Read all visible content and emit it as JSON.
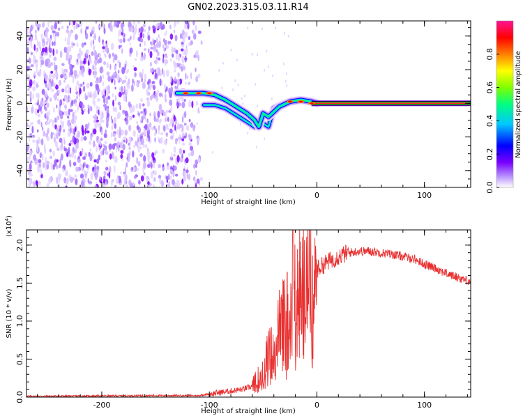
{
  "title": "GN02.2023.315.03.11.R14",
  "chart_data": [
    {
      "type": "heatmap",
      "xlabel": "Height of straight line (km)",
      "ylabel": "Frequency (Hz)",
      "xlim": [
        -270,
        143
      ],
      "ylim": [
        -50,
        49
      ],
      "x_ticks": [
        -200,
        -100,
        0,
        100
      ],
      "x_tick_labels": [
        "-200",
        "-100",
        "0",
        "100"
      ],
      "y_ticks": [
        -40,
        -20,
        0,
        20,
        40
      ],
      "y_tick_labels": [
        "-40",
        "-20",
        "0",
        "20",
        "40"
      ],
      "colorbar": {
        "label": "Normalized spectral amplitude",
        "range": [
          0,
          1
        ],
        "ticks": [
          0,
          0.2,
          0.4,
          0.6,
          0.8
        ],
        "tick_labels": [
          "0.0",
          "0.2",
          "0.4",
          "0.6",
          "0.8"
        ],
        "colors": [
          "#ffffff",
          "#b48cff",
          "#7a00ff",
          "#0000ff",
          "#00c8ff",
          "#00ff80",
          "#80ff00",
          "#ffff00",
          "#ff8000",
          "#ff0000",
          "#ff1493"
        ]
      },
      "noise_region_x": [
        -270,
        -115
      ],
      "main_track": [
        [
          -130,
          6
        ],
        [
          -115,
          6
        ],
        [
          -105,
          6
        ],
        [
          -95,
          5
        ],
        [
          -85,
          2
        ],
        [
          -75,
          -2
        ],
        [
          -65,
          -6
        ],
        [
          -58,
          -10
        ],
        [
          -54,
          -14
        ],
        [
          -50,
          -6
        ],
        [
          -45,
          -8
        ],
        [
          -40,
          -5
        ],
        [
          -35,
          -2
        ],
        [
          -25,
          1
        ],
        [
          -15,
          2
        ],
        [
          -5,
          1
        ],
        [
          0,
          0
        ],
        [
          143,
          0
        ]
      ],
      "secondary_track": [
        [
          -105,
          -1
        ],
        [
          -95,
          -1
        ],
        [
          -85,
          -3
        ],
        [
          -75,
          -7
        ],
        [
          -65,
          -11
        ],
        [
          -58,
          -14
        ],
        [
          -50,
          -12
        ],
        [
          -45,
          -14
        ],
        [
          -40,
          -3
        ],
        [
          -30,
          0
        ]
      ],
      "grid": false
    },
    {
      "type": "line",
      "xlabel": "Height of straight line (km)",
      "ylabel": "SNR (10 * v/v)",
      "y_multiplier_label": "(x10",
      "y_multiplier_exp": "4",
      "y_multiplier_close": ")",
      "xlim": [
        -270,
        143
      ],
      "ylim": [
        0,
        2.2
      ],
      "x_ticks": [
        -200,
        -100,
        0,
        100
      ],
      "x_tick_labels": [
        "-200",
        "-100",
        "0",
        "100"
      ],
      "y_ticks": [
        0,
        0.5,
        1.0,
        1.5,
        2.0
      ],
      "y_tick_labels": [
        "0.0",
        "0.5",
        "1.0",
        "1.5",
        "2.0"
      ],
      "series": [
        {
          "color": "#e83030",
          "x": [
            -270,
            -150,
            -110,
            -100,
            -90,
            -80,
            -70,
            -60,
            -55,
            -50,
            -45,
            -40,
            -35,
            -30,
            -25,
            -22,
            -20,
            -15,
            -10,
            -5,
            0,
            10,
            20,
            30,
            40,
            50,
            60,
            70,
            80,
            90,
            100,
            110,
            120,
            130,
            143
          ],
          "y": [
            0.01,
            0.02,
            0.02,
            0.04,
            0.06,
            0.08,
            0.1,
            0.14,
            0.25,
            0.4,
            0.6,
            0.75,
            0.95,
            1.1,
            1.25,
            1.4,
            1.45,
            1.55,
            1.6,
            1.65,
            1.68,
            1.78,
            1.85,
            1.9,
            1.92,
            1.92,
            1.9,
            1.88,
            1.85,
            1.82,
            1.75,
            1.7,
            1.63,
            1.58,
            1.52
          ]
        }
      ],
      "grid": false
    }
  ]
}
